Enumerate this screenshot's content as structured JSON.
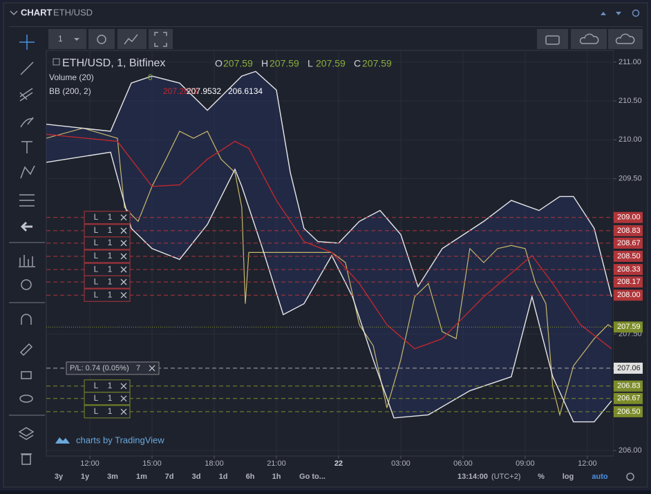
{
  "header": {
    "title": "CHART",
    "symbol": "ETH/USD"
  },
  "top_toolbar": {
    "interval": "1"
  },
  "chart_data": {
    "type": "line",
    "legend": {
      "symbol": "ETH/USD, 1, Bitfinex",
      "ohlc": [
        {
          "label": "O",
          "value": 207.59
        },
        {
          "label": "H",
          "value": 207.59
        },
        {
          "label": "L",
          "value": 207.59
        },
        {
          "label": "C",
          "value": 207.59
        }
      ],
      "volume": {
        "name": "Volume (20)",
        "value": 0
      },
      "bb": {
        "name": "BB (200, 2)"
      }
    },
    "xlim": [
      9.9,
      37.27
    ],
    "xticks": [
      {
        "value": 12,
        "label": "12:00"
      },
      {
        "value": 15,
        "label": "15:00"
      },
      {
        "value": 18,
        "label": "18:00"
      },
      {
        "value": 21,
        "label": "21:00"
      },
      {
        "value": 24,
        "label": "22"
      },
      {
        "value": 27,
        "label": "03:00"
      },
      {
        "value": 30,
        "label": "06:00"
      },
      {
        "value": 33,
        "label": "09:00"
      },
      {
        "value": 36,
        "label": "12:00"
      }
    ],
    "ylim": [
      205.93,
      211.15
    ],
    "yticks": [
      {
        "value": 206,
        "label": "206.00"
      },
      {
        "value": 207.5,
        "label": "207.50"
      },
      {
        "value": 209.5,
        "label": "209.50"
      },
      {
        "value": 210,
        "label": "210.00"
      },
      {
        "value": 210.5,
        "label": "210.50"
      },
      {
        "value": 211,
        "label": "211.00"
      }
    ],
    "grid": true,
    "series": [
      {
        "color": "#c9b96c",
        "x": [
          9.9,
          11.67,
          13.33,
          13.67,
          14.33,
          15,
          15.67,
          16.33,
          17,
          17.67,
          18.33,
          19,
          19.33,
          19.5,
          19.67,
          21,
          22.67,
          23.67,
          24.33,
          25,
          25.67,
          26.33,
          27,
          27.67,
          28.33,
          29,
          29.67,
          30.33,
          31,
          31.67,
          32.33,
          33,
          33.5,
          34,
          34.33,
          34.67,
          35.33,
          36.33,
          37,
          37.17
        ],
        "values": [
          210.02,
          210.15,
          210.02,
          209.13,
          208.95,
          209.4,
          209.75,
          210.11,
          210.02,
          210.11,
          209.75,
          209.58,
          209.13,
          207.89,
          208.55,
          208.55,
          208.55,
          208.55,
          208.42,
          207.62,
          207.35,
          206.55,
          207.17,
          207.98,
          208.15,
          207.53,
          207.44,
          208.6,
          208.42,
          208.6,
          208.64,
          208.6,
          208.15,
          207.89,
          206.82,
          206.46,
          207.09,
          207.44,
          207.62,
          207.59
        ]
      },
      {
        "color": "#c0282d",
        "last_value": 207.2833,
        "x": [
          9.9,
          13.33,
          15,
          16.33,
          17.67,
          19,
          19.67,
          21,
          22.33,
          23.67,
          25,
          26.33,
          27.67,
          29,
          31,
          33.33,
          34.33,
          35.67,
          37.17
        ],
        "values": [
          210.07,
          209.98,
          209.4,
          209.42,
          209.75,
          209.98,
          209.89,
          209.22,
          208.69,
          208.55,
          208.15,
          207.62,
          207.31,
          207.44,
          207.98,
          208.51,
          208.15,
          207.62,
          207.31
        ]
      },
      {
        "color": "#e8e8e8",
        "last_value": 207.9532,
        "x": [
          9.9,
          13,
          14,
          15,
          16.33,
          17.67,
          19.33,
          20,
          21,
          21.67,
          22.33,
          23,
          24,
          25,
          26,
          27,
          27.83,
          29,
          31,
          32.33,
          33.67,
          34.67,
          35.33,
          36.33,
          37.17
        ],
        "values": [
          210.2,
          210.11,
          210.73,
          210.82,
          210.73,
          210.38,
          210.82,
          210.88,
          210.64,
          209.58,
          208.86,
          208.69,
          208.67,
          208.95,
          209.09,
          208.78,
          208.11,
          208.6,
          208.95,
          209.22,
          209.09,
          209.27,
          209.27,
          208.86,
          207.98
        ]
      },
      {
        "color": "#e8e8e8",
        "last_value": 206.6134,
        "x": [
          9.9,
          13,
          14,
          15,
          16.33,
          17.67,
          19,
          19.33,
          20.33,
          21.33,
          22.33,
          23.67,
          24.67,
          25.67,
          26.67,
          28.33,
          30.33,
          32.33,
          33.33,
          34.33,
          35.33,
          36.33,
          37.17
        ],
        "values": [
          209.71,
          209.84,
          208.86,
          208.6,
          208.46,
          208.91,
          209.62,
          209.4,
          208.6,
          207.75,
          207.89,
          208.51,
          207.98,
          207.17,
          206.42,
          206.46,
          206.77,
          206.95,
          207.98,
          206.95,
          206.37,
          206.37,
          206.64
        ]
      }
    ],
    "last_price": {
      "value": 207.59,
      "label": "207.59"
    },
    "position": {
      "value": 207.06,
      "label": "207.06",
      "pl": "P/L: 0.74 (0.05%)",
      "qty": 7
    },
    "sell_orders": {
      "color": "#b0363a",
      "side": "L",
      "qty": 1,
      "levels": [
        {
          "value": 209,
          "label": "209.00"
        },
        {
          "value": 208.83,
          "label": "208.83"
        },
        {
          "value": 208.67,
          "label": "208.67"
        },
        {
          "value": 208.5,
          "label": "208.50"
        },
        {
          "value": 208.33,
          "label": "208.33"
        },
        {
          "value": 208.17,
          "label": "208.17"
        },
        {
          "value": 208,
          "label": "208.00"
        }
      ]
    },
    "buy_orders": {
      "color": "#7c8c2a",
      "side": "L",
      "qty": 1,
      "levels": [
        {
          "value": 206.83,
          "label": "206.83"
        },
        {
          "value": 206.67,
          "label": "206.67"
        },
        {
          "value": 206.5,
          "label": "206.50"
        }
      ]
    }
  },
  "watermark": "charts by TradingView",
  "bottom_toolbar": {
    "ranges": [
      "3y",
      "1y",
      "3m",
      "1m",
      "7d",
      "3d",
      "1d",
      "6h",
      "1h",
      "Go to..."
    ],
    "time": "13:14:00",
    "tz": "(UTC+2)",
    "percent": "%",
    "log": "log",
    "auto": "auto"
  }
}
